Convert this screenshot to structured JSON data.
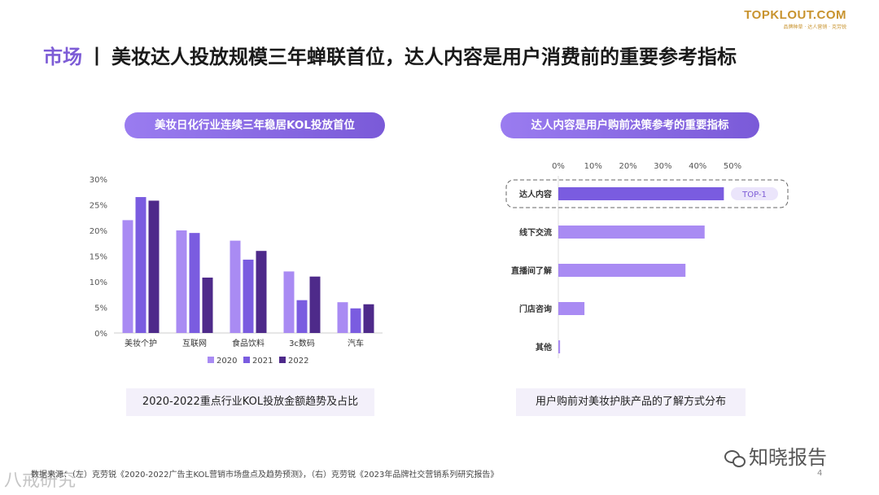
{
  "logo": {
    "main": "TOPKLOUT.COM",
    "sub": "品牌种草 · 达人营销 · 克劳锐"
  },
  "header": {
    "keyword": "市场",
    "separator": "丨",
    "title": "美妆达人投放规模三年蝉联首位，达人内容是用户消费前的重要参考指标"
  },
  "left_panel": {
    "pill": "美妆日化行业连续三年稳居KOL投放首位",
    "caption": "2020-2022重点行业KOL投放金额趋势及占比"
  },
  "right_panel": {
    "pill": "达人内容是用户购前决策参考的重要指标",
    "caption": "用户购前对美妆护肤产品的了解方式分布"
  },
  "footer": {
    "source": "数据来源：（左）克劳锐《2020-2022广告主KOL营销市场盘点及趋势预测》，（右）克劳锐《2023年品牌社交营销系列研究报告》",
    "page": "4"
  },
  "watermarks": {
    "left": "八戒研究",
    "right": "知晓报告"
  },
  "colors": {
    "c2020": "#a98bf3",
    "c2021": "#7a5ce0",
    "c2022": "#4e2a8a",
    "accent": "#7d5cd6"
  },
  "chart_data": [
    {
      "type": "bar",
      "categories": [
        "美妆个护",
        "互联网",
        "食品饮料",
        "3c数码",
        "汽车"
      ],
      "series": [
        {
          "name": "2020",
          "values": [
            22,
            20,
            18,
            12,
            6
          ]
        },
        {
          "name": "2021",
          "values": [
            26.5,
            19.5,
            14.3,
            6.4,
            4.8
          ]
        },
        {
          "name": "2022",
          "values": [
            25.8,
            10.8,
            16,
            11,
            5.6
          ]
        }
      ],
      "yticks": [
        "0%",
        "5%",
        "10%",
        "15%",
        "20%",
        "25%",
        "30%"
      ],
      "ylim": [
        0,
        30
      ],
      "legend_position": "bottom"
    },
    {
      "type": "bar",
      "orientation": "horizontal",
      "categories": [
        "达人内容",
        "线下交流",
        "直播间了解",
        "门店咨询",
        "其他"
      ],
      "values": [
        47.5,
        42,
        36.5,
        7.5,
        0.5
      ],
      "xticks": [
        "0%",
        "10%",
        "20%",
        "30%",
        "40%",
        "50%"
      ],
      "xlim": [
        0,
        50
      ],
      "highlight": {
        "category": "达人内容",
        "badge": "TOP-1"
      }
    }
  ]
}
